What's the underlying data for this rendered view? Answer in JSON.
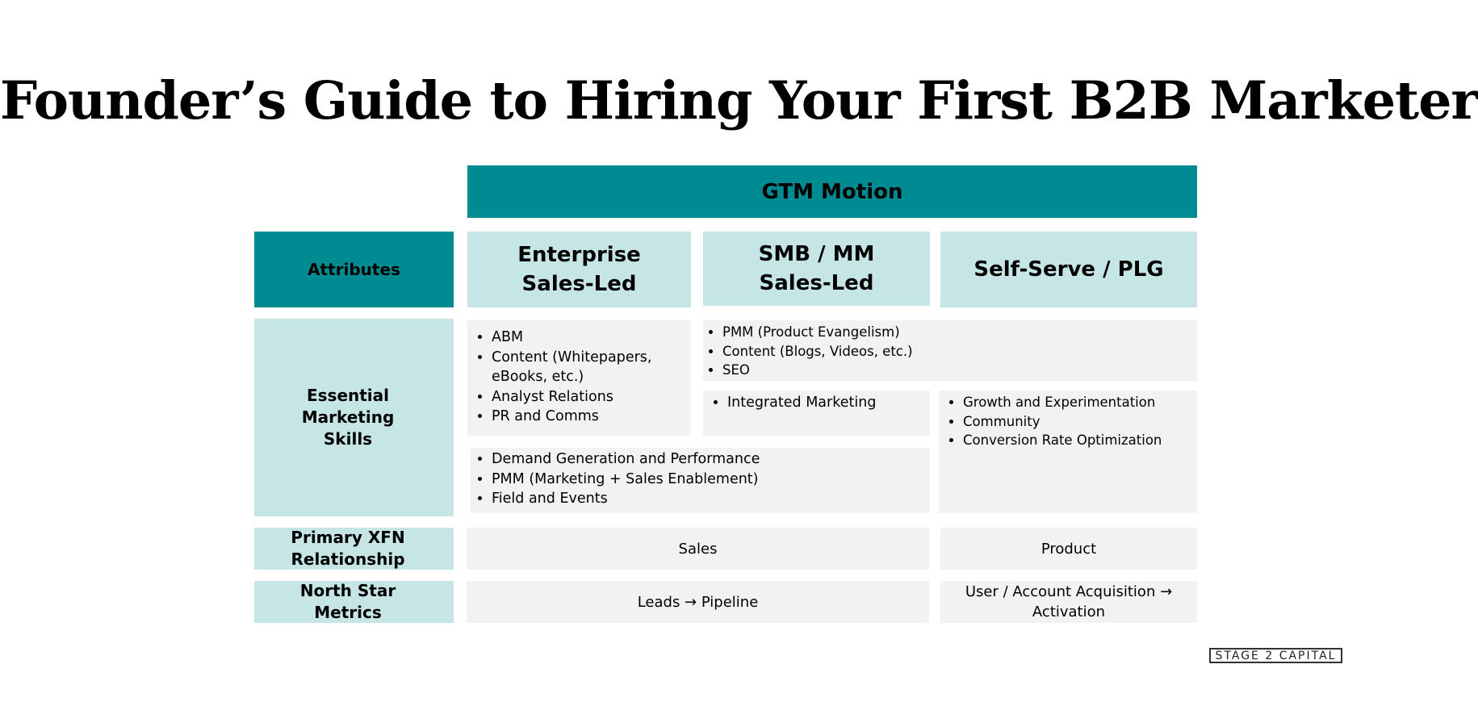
{
  "title": "Founder’s Guide to Hiring Your First B2B Marketer",
  "header": {
    "gtm_motion": "GTM Motion",
    "attributes": "Attributes",
    "columns": [
      [
        "Enterprise",
        "Sales-Led"
      ],
      [
        "SMB / MM",
        "Sales-Led"
      ],
      [
        "Self-Serve / PLG"
      ]
    ]
  },
  "rows": {
    "skills": {
      "label": [
        "Essential",
        "Marketing",
        "Skills"
      ],
      "enterprise": [
        "ABM",
        "Content (Whitepapers, eBooks, etc.)",
        "Analyst Relations",
        "PR and Comms"
      ],
      "smb_plg_shared": [
        "PMM (Product Evangelism)",
        "Content (Blogs, Videos, etc.)",
        "SEO"
      ],
      "smb": [
        "Integrated Marketing"
      ],
      "plg": [
        "Growth and Experimentation",
        "Community",
        "Conversion Rate Optimization"
      ],
      "sales_led_shared": [
        "Demand Generation and Performance",
        "PMM (Marketing + Sales Enablement)",
        "Field and Events"
      ]
    },
    "xfn": {
      "label": [
        "Primary XFN",
        "Relationship"
      ],
      "sales_led": "Sales",
      "plg": "Product"
    },
    "metrics": {
      "label": [
        "North Star",
        "Metrics"
      ],
      "sales_led": "Leads → Pipeline",
      "plg": [
        "User / Account Acquisition →",
        "Activation"
      ]
    }
  },
  "logo": "STAGE 2 CAPITAL",
  "colors": {
    "teal": "#008b93",
    "light_teal": "#c6e6e5",
    "grey": "#f2f2f2"
  }
}
